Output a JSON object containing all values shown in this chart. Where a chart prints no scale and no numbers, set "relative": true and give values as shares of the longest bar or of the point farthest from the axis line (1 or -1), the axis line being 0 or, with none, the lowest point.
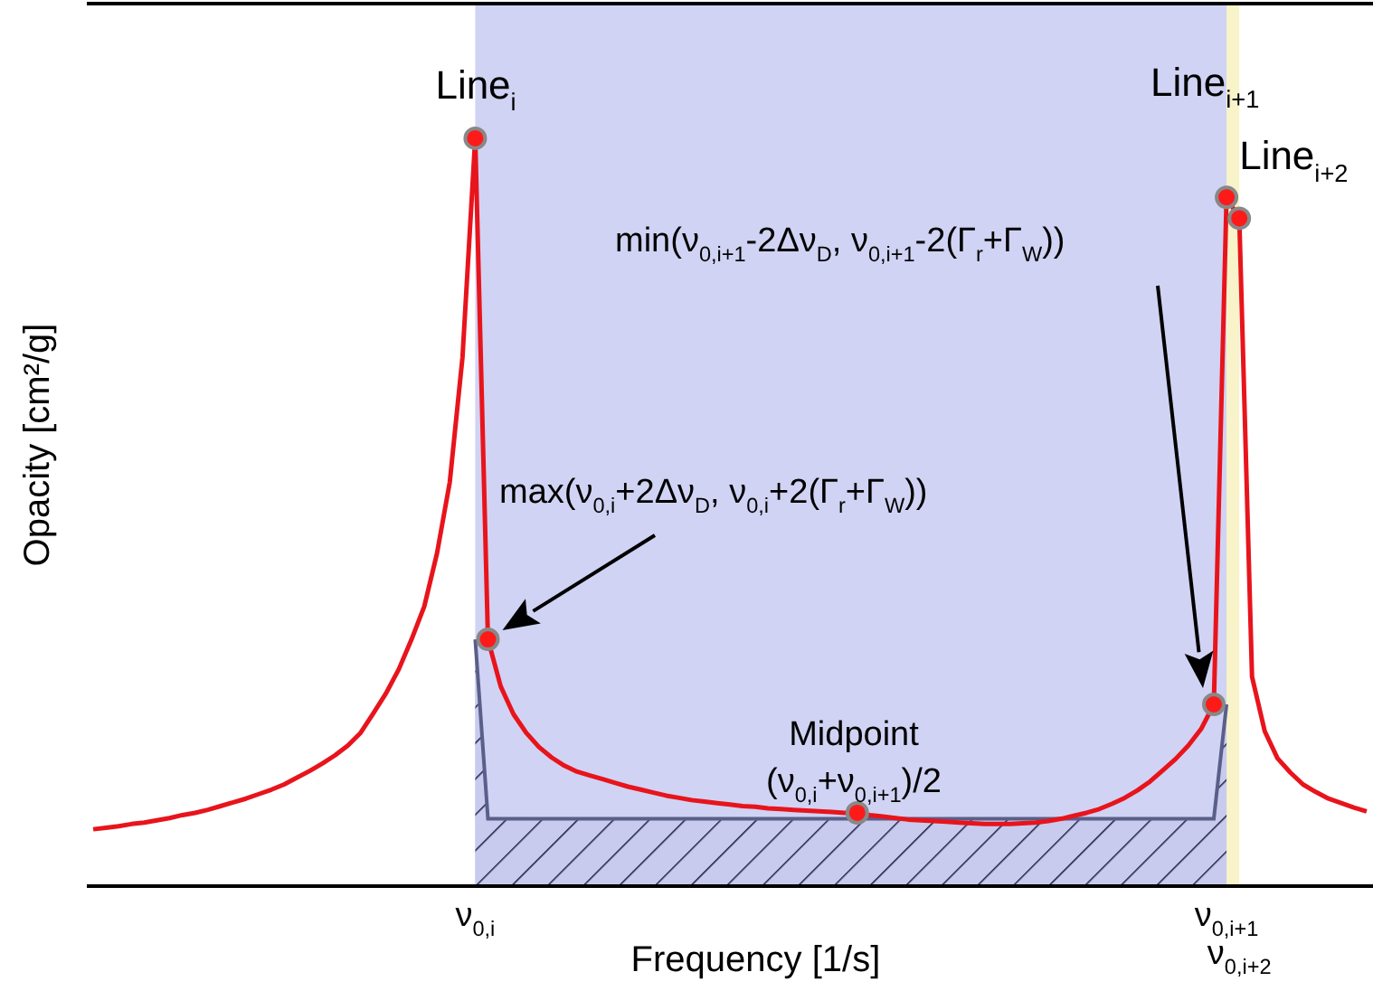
{
  "chart_data": {
    "type": "line",
    "relative": true,
    "xlabel": "Frequency [1/s]",
    "ylabel": "Opacity [cm²/g]",
    "categories": [
      null,
      null,
      null,
      null,
      null,
      null,
      null,
      null,
      null,
      null,
      null,
      null,
      null,
      null,
      null,
      null,
      null,
      null,
      null,
      null,
      null,
      null,
      null,
      null,
      null,
      null,
      null,
      null,
      null,
      null,
      "ν$_{0,i}$",
      null,
      null,
      null,
      null,
      null,
      null,
      null,
      null,
      null,
      null,
      null,
      null,
      null,
      null,
      null,
      null,
      null,
      null,
      null,
      null,
      null,
      null,
      null,
      null,
      null,
      null,
      null,
      null,
      null,
      null,
      null,
      null,
      null,
      null,
      null,
      null,
      null,
      null,
      null,
      null,
      null,
      null,
      null,
      null,
      null,
      null,
      null,
      null,
      null,
      null,
      null,
      null,
      null,
      null,
      null,
      null,
      null,
      null,
      "ν$_{0,i+1}$",
      "ν$_{0,i+2}$",
      null,
      null,
      null,
      null,
      null,
      null,
      null,
      null,
      null,
      null
    ],
    "series": [
      {
        "color": "#e8141c",
        "values": [
          0.076,
          0.078,
          0.08,
          0.083,
          0.085,
          0.088,
          0.091,
          0.095,
          0.098,
          0.102,
          0.107,
          0.112,
          0.117,
          0.123,
          0.129,
          0.136,
          0.145,
          0.154,
          0.164,
          0.175,
          0.188,
          0.205,
          0.231,
          0.258,
          0.29,
          0.33,
          0.374,
          0.445,
          0.54,
          0.707,
          1.0,
          0.33,
          0.267,
          0.23,
          0.205,
          0.186,
          0.172,
          0.161,
          0.153,
          0.148,
          0.143,
          0.138,
          0.133,
          0.129,
          0.125,
          0.121,
          0.118,
          0.115,
          0.113,
          0.111,
          0.109,
          0.107,
          0.106,
          0.104,
          0.103,
          0.102,
          0.101,
          0.1,
          0.099,
          0.098,
          0.098,
          0.095,
          0.093,
          0.091,
          0.089,
          0.088,
          0.087,
          0.086,
          0.085,
          0.084,
          0.083,
          0.083,
          0.083,
          0.084,
          0.085,
          0.087,
          0.09,
          0.094,
          0.098,
          0.103,
          0.11,
          0.118,
          0.128,
          0.14,
          0.155,
          0.17,
          0.188,
          0.21,
          0.243,
          0.921,
          0.893,
          0.28,
          0.207,
          0.171,
          0.152,
          0.136,
          0.126,
          0.117,
          0.111,
          0.105,
          0.1
        ]
      },
      {
        "type": "area",
        "color": "#5a5f8a",
        "values": [
          null,
          null,
          null,
          null,
          null,
          null,
          null,
          null,
          null,
          null,
          null,
          null,
          null,
          null,
          null,
          null,
          null,
          null,
          null,
          null,
          null,
          null,
          null,
          null,
          null,
          null,
          null,
          null,
          null,
          null,
          0.33,
          0.09,
          0.09,
          0.09,
          0.09,
          0.09,
          0.09,
          0.09,
          0.09,
          0.09,
          0.09,
          0.09,
          0.09,
          0.09,
          0.09,
          0.09,
          0.09,
          0.09,
          0.09,
          0.09,
          0.09,
          0.09,
          0.09,
          0.09,
          0.09,
          0.09,
          0.09,
          0.09,
          0.09,
          0.09,
          0.09,
          0.09,
          0.09,
          0.09,
          0.09,
          0.09,
          0.09,
          0.09,
          0.09,
          0.09,
          0.09,
          0.09,
          0.09,
          0.09,
          0.09,
          0.09,
          0.09,
          0.09,
          0.09,
          0.09,
          0.09,
          0.09,
          0.09,
          0.09,
          0.09,
          0.09,
          0.09,
          0.09,
          0.09,
          0.243,
          null,
          null,
          null,
          null,
          null,
          null,
          null,
          null,
          null,
          null,
          null
        ]
      },
      {
        "type": "scatter",
        "color": "#ff1a1a",
        "marker": "circle",
        "values": [
          null,
          null,
          null,
          null,
          null,
          null,
          null,
          null,
          null,
          null,
          null,
          null,
          null,
          null,
          null,
          null,
          null,
          null,
          null,
          null,
          null,
          null,
          null,
          null,
          null,
          null,
          null,
          null,
          null,
          null,
          1.0,
          0.33,
          null,
          null,
          null,
          null,
          null,
          null,
          null,
          null,
          null,
          null,
          null,
          null,
          null,
          null,
          null,
          null,
          null,
          null,
          null,
          null,
          null,
          null,
          null,
          null,
          null,
          null,
          null,
          null,
          0.098,
          null,
          null,
          null,
          null,
          null,
          null,
          null,
          null,
          null,
          null,
          null,
          null,
          null,
          null,
          null,
          null,
          null,
          null,
          null,
          null,
          null,
          null,
          null,
          null,
          null,
          null,
          null,
          0.243,
          0.921,
          0.893,
          null,
          null,
          null,
          null,
          null,
          null,
          null,
          null,
          null,
          null
        ]
      }
    ],
    "bands": [
      {
        "axis": "x",
        "from": "ν$_{0,i}$",
        "to": "ν$_{0,i+1}$",
        "color": "#d0d3f3"
      },
      {
        "axis": "x",
        "from": "ν$_{0,i+1}$",
        "to": "ν$_{0,i+2}$",
        "color": "#f8f3c9"
      }
    ],
    "annotations": [
      {
        "text": "Line$_{i}$",
        "x": "ν$_{0,i}$",
        "y": 1.0
      },
      {
        "text": "Line$_{i+1}$",
        "x": "ν$_{0,i+1}$",
        "y": 0.921
      },
      {
        "text": "Line$_{i+2}$",
        "x": "ν$_{0,i+2}$",
        "y": 0.893
      },
      "Midpoint",
      "(ν$_{0,i}$+ν$_{0,i+1}$)/2",
      "max(ν$_{0,i}$+2Δν$_{D}$, ν$_{0,i}$+2(Γ$_{r}$+Γ$_{W}$))",
      "min(ν$_{0,i+1}$-2Δν$_{D}$, ν$_{0,i+1}$-2(Γ$_{r}$+Γ$_{W}$))"
    ]
  }
}
